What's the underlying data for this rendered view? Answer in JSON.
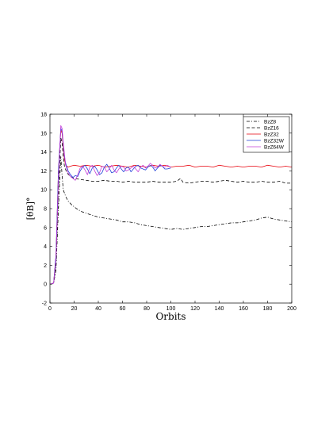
{
  "chart_data": {
    "type": "line",
    "title": "",
    "xlabel": "Orbits",
    "ylabel": "[θB]°",
    "xlim": [
      0,
      200
    ],
    "ylim": [
      -2,
      18
    ],
    "xticks": [
      0,
      20,
      40,
      60,
      80,
      100,
      120,
      140,
      160,
      180,
      200
    ],
    "yticks": [
      -2,
      0,
      2,
      4,
      6,
      8,
      10,
      12,
      14,
      16,
      18
    ],
    "grid": false,
    "legend_position": "top-right",
    "series": [
      {
        "name": "BzZ8",
        "color": "#000000",
        "dash": "dashdot",
        "x": [
          0,
          3,
          5,
          7,
          9,
          10,
          11,
          13,
          15,
          18,
          22,
          26,
          30,
          35,
          40,
          45,
          50,
          55,
          60,
          65,
          70,
          75,
          80,
          85,
          90,
          95,
          100,
          105,
          110,
          115,
          120,
          125,
          130,
          135,
          140,
          145,
          150,
          155,
          160,
          165,
          170,
          175,
          180,
          185,
          190,
          195,
          200
        ],
        "y": [
          0,
          0.1,
          1.5,
          8,
          13.5,
          11.5,
          10,
          9.3,
          8.8,
          8.4,
          8.0,
          7.7,
          7.5,
          7.3,
          7.1,
          7.0,
          6.9,
          6.8,
          6.6,
          6.6,
          6.5,
          6.3,
          6.2,
          6.1,
          6.0,
          5.9,
          5.8,
          5.9,
          5.8,
          5.9,
          6.0,
          6.1,
          6.1,
          6.2,
          6.3,
          6.4,
          6.5,
          6.5,
          6.6,
          6.7,
          6.8,
          7.0,
          7.1,
          6.9,
          6.8,
          6.7,
          6.6
        ]
      },
      {
        "name": "BzZ16",
        "color": "#000000",
        "dash": "dashed",
        "x": [
          0,
          3,
          5,
          7,
          9,
          10,
          11,
          12,
          14,
          17,
          20,
          25,
          30,
          35,
          40,
          45,
          50,
          55,
          60,
          65,
          70,
          75,
          80,
          85,
          90,
          95,
          100,
          105,
          108,
          110,
          115,
          120,
          125,
          130,
          135,
          140,
          145,
          150,
          155,
          160,
          165,
          170,
          175,
          180,
          185,
          190,
          195,
          200
        ],
        "y": [
          0,
          0.1,
          2,
          10,
          15.5,
          15,
          13.5,
          12.5,
          11.8,
          11.4,
          11.2,
          11.1,
          11.0,
          10.9,
          10.9,
          11.0,
          10.9,
          10.9,
          10.8,
          10.9,
          10.8,
          10.8,
          10.8,
          10.9,
          10.8,
          10.8,
          10.8,
          10.9,
          11.2,
          10.8,
          10.7,
          10.8,
          10.9,
          10.9,
          10.8,
          10.9,
          11.0,
          10.9,
          10.8,
          10.9,
          10.8,
          10.8,
          10.9,
          10.8,
          10.8,
          10.9,
          10.7,
          10.7
        ]
      },
      {
        "name": "BzZ32",
        "color": "#e8000b",
        "dash": "solid",
        "x": [
          0,
          3,
          5,
          7,
          9,
          10,
          11,
          12,
          13,
          15,
          17,
          20,
          25,
          30,
          35,
          40,
          45,
          50,
          55,
          60,
          65,
          70,
          75,
          80,
          85,
          90,
          95,
          100,
          105,
          110,
          115,
          120,
          125,
          130,
          135,
          140,
          145,
          150,
          155,
          160,
          165,
          170,
          175,
          180,
          185,
          190,
          195,
          200
        ],
        "y": [
          0,
          0.1,
          3,
          12,
          16.3,
          16,
          14.5,
          13.2,
          12.6,
          12.4,
          12.5,
          12.6,
          12.5,
          12.6,
          12.5,
          12.6,
          12.4,
          12.5,
          12.6,
          12.5,
          12.4,
          12.6,
          12.5,
          12.4,
          12.6,
          12.5,
          12.6,
          12.4,
          12.5,
          12.5,
          12.6,
          12.4,
          12.5,
          12.5,
          12.4,
          12.6,
          12.5,
          12.4,
          12.5,
          12.4,
          12.5,
          12.5,
          12.4,
          12.6,
          12.5,
          12.4,
          12.5,
          12.4
        ]
      },
      {
        "name": "BzZ32W",
        "color": "#1f3fd8",
        "dash": "solid",
        "x": [
          0,
          3,
          5,
          7,
          9,
          10,
          11,
          12,
          13,
          15,
          17,
          19,
          21,
          23,
          25,
          27,
          29,
          31,
          33,
          35,
          37,
          39,
          41,
          43,
          45,
          47,
          49,
          51,
          53,
          55,
          57,
          59,
          61,
          63,
          65,
          67,
          69,
          71,
          73,
          75,
          77,
          79,
          81,
          83,
          85,
          87,
          89,
          91,
          93,
          95,
          97,
          100
        ],
        "y": [
          0,
          0.1,
          3,
          12,
          16.5,
          16.2,
          14.8,
          13.5,
          12.8,
          12.0,
          11.6,
          11.3,
          11.5,
          11.4,
          12.0,
          12.4,
          12.6,
          12.2,
          11.7,
          12.3,
          12.5,
          12.1,
          11.6,
          11.8,
          12.4,
          12.7,
          12.3,
          11.8,
          11.9,
          12.3,
          12.6,
          12.2,
          11.9,
          12.3,
          12.4,
          11.9,
          12.2,
          12.5,
          12.6,
          12.3,
          12.2,
          12.1,
          12.4,
          12.6,
          12.4,
          12.0,
          12.3,
          12.6,
          12.5,
          12.2,
          12.2,
          12.3
        ]
      },
      {
        "name": "BzZ64W",
        "color": "#c43fd8",
        "dash": "solid",
        "x": [
          0,
          3,
          5,
          7,
          9,
          10,
          11,
          12,
          13,
          15,
          17,
          19,
          21,
          23,
          25,
          27,
          29,
          31,
          33,
          35,
          37,
          39,
          41,
          43,
          45,
          47,
          49,
          51,
          53,
          55,
          57,
          59,
          61,
          63,
          65,
          67,
          69,
          71,
          73,
          75,
          77,
          79,
          81,
          83,
          85,
          87,
          89,
          91,
          93,
          95,
          97,
          100
        ],
        "y": [
          0,
          0.1,
          2.5,
          11,
          16.8,
          16.5,
          15,
          13.8,
          12.6,
          11.8,
          11.4,
          11.2,
          11.0,
          11.6,
          12.3,
          12.5,
          12.1,
          11.6,
          12.4,
          12.6,
          12.0,
          11.5,
          11.8,
          12.5,
          12.4,
          11.9,
          12.2,
          12.6,
          12.1,
          11.8,
          12.2,
          12.5,
          12.4,
          12.0,
          12.1,
          12.3,
          12.5,
          12.2,
          11.9,
          12.4,
          12.6,
          12.3,
          12.5,
          12.8,
          12.6,
          12.3,
          12.4,
          12.7,
          12.5,
          12.4,
          12.6,
          12.4
        ]
      }
    ]
  }
}
